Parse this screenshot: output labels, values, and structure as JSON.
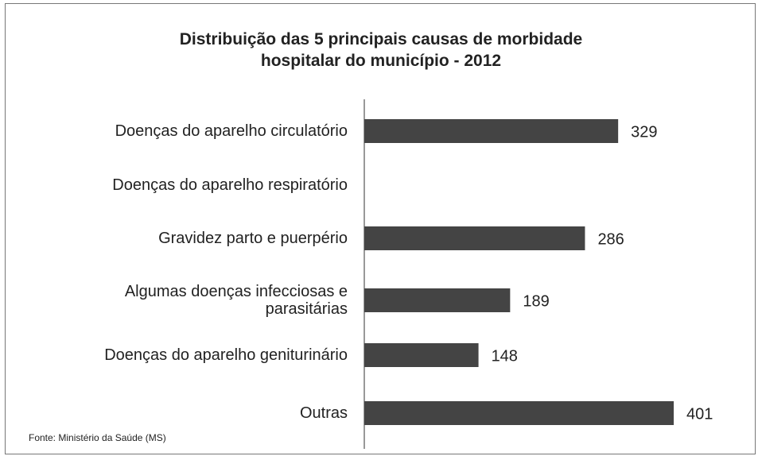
{
  "chart_data": {
    "type": "bar",
    "orientation": "horizontal",
    "title": "Distribuição das 5 principais causas de morbidade\nhospitalar do município - 2012",
    "categories": [
      "Doenças do aparelho circulatório",
      "Doenças do aparelho respiratório",
      "Gravidez parto e puerpério",
      "Algumas doenças infecciosas e\nparasitárias",
      "Doenças do aparelho geniturinário",
      "Outras"
    ],
    "values": [
      329,
      null,
      286,
      189,
      148,
      401
    ],
    "color": "#444444",
    "source": "Fonte: Ministério da Saúde (MS)"
  }
}
